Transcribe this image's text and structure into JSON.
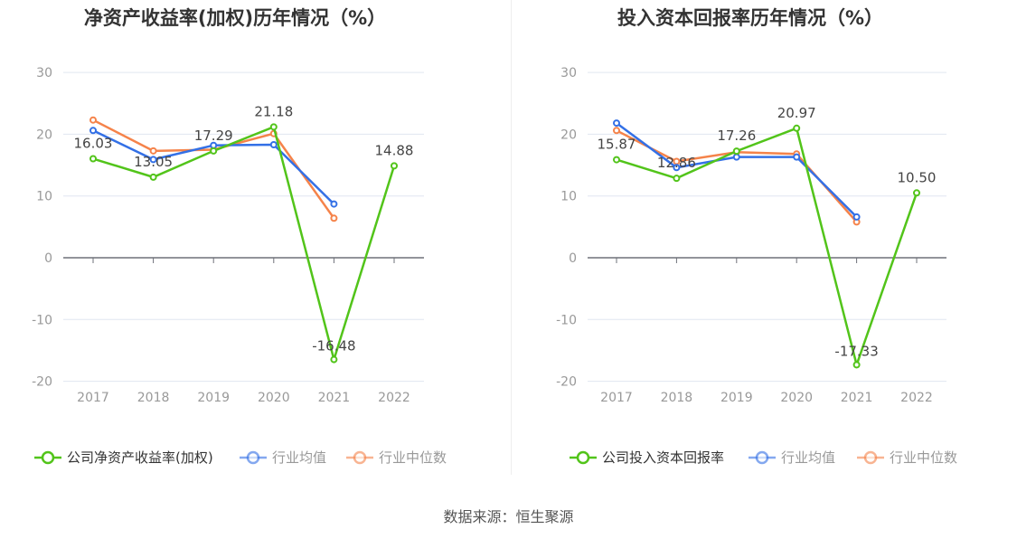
{
  "source": "数据来源：恒生聚源",
  "colors": {
    "company": "#52c41a",
    "avg": "#3370e6",
    "median": "#f5834a",
    "grid": "#e0e6f1",
    "axis": "#6e7079",
    "label": "#999"
  },
  "chart_data": [
    {
      "type": "line",
      "title": "净资产收益率(加权)历年情况（%）",
      "categories": [
        "2017",
        "2018",
        "2019",
        "2020",
        "2021",
        "2022"
      ],
      "ylim": [
        -20,
        30
      ],
      "yticks": [
        -20,
        -10,
        0,
        10,
        20,
        30
      ],
      "grid": true,
      "legend_position": "bottom",
      "series": [
        {
          "name": "公司净资产收益率(加权)",
          "key": "company",
          "values": [
            16.03,
            13.05,
            17.29,
            21.18,
            -16.48,
            14.88
          ],
          "labels": [
            "16.03",
            "13.05",
            "17.29",
            "21.18",
            "-16.48",
            "14.88"
          ]
        },
        {
          "name": "行业均值",
          "key": "avg",
          "values": [
            20.6,
            15.9,
            18.2,
            18.3,
            8.7,
            null
          ]
        },
        {
          "name": "行业中位数",
          "key": "median",
          "values": [
            22.3,
            17.3,
            17.5,
            20.1,
            6.4,
            null
          ]
        }
      ]
    },
    {
      "type": "line",
      "title": "投入资本回报率历年情况（%）",
      "categories": [
        "2017",
        "2018",
        "2019",
        "2020",
        "2021",
        "2022"
      ],
      "ylim": [
        -20,
        30
      ],
      "yticks": [
        -20,
        -10,
        0,
        10,
        20,
        30
      ],
      "grid": true,
      "legend_position": "bottom",
      "series": [
        {
          "name": "公司投入资本回报率",
          "key": "company",
          "values": [
            15.87,
            12.86,
            17.26,
            20.97,
            -17.33,
            10.5
          ],
          "labels": [
            "15.87",
            "12.86",
            "17.26",
            "20.97",
            "-17.33",
            "10.50"
          ]
        },
        {
          "name": "行业均值",
          "key": "avg",
          "values": [
            21.8,
            14.6,
            16.3,
            16.3,
            6.6,
            null
          ]
        },
        {
          "name": "行业中位数",
          "key": "median",
          "values": [
            20.6,
            15.6,
            17.1,
            16.8,
            5.8,
            null
          ]
        }
      ]
    }
  ]
}
